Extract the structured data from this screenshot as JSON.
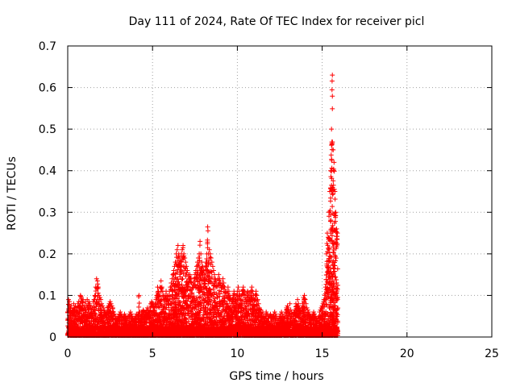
{
  "chart_data": {
    "type": "scatter",
    "title": "Day 111 of 2024, Rate Of TEC Index for receiver picl",
    "xlabel": "GPS time / hours",
    "ylabel": "ROTI / TECUs",
    "xlim": [
      0,
      25
    ],
    "ylim": [
      0,
      0.7
    ],
    "x_ticks": [
      0,
      5,
      10,
      15,
      20,
      25
    ],
    "y_ticks": [
      0,
      0.1,
      0.2,
      0.3,
      0.4,
      0.5,
      0.6,
      0.7
    ],
    "x_tick_labels": [
      "0",
      "5",
      "10",
      "15",
      "20",
      "25"
    ],
    "y_tick_labels": [
      "0",
      "0.1",
      "0.2",
      "0.3",
      "0.4",
      "0.5",
      "0.6",
      "0.7"
    ],
    "grid": true,
    "marker": "+",
    "colors": {
      "series": "#ff0000",
      "grid": "#a0a0a0",
      "axis": "#000000"
    },
    "x_values_start": 0.0,
    "x_values_step": 0.05,
    "series": [
      {
        "y_max": [
          0.06,
          0.09,
          0.085,
          0.07,
          0.075,
          0.06,
          0.065,
          0.08,
          0.07,
          0.075,
          0.06,
          0.07,
          0.08,
          0.085,
          0.075,
          0.1,
          0.095,
          0.085,
          0.09,
          0.07,
          0.075,
          0.085,
          0.075,
          0.09,
          0.08,
          0.085,
          0.08,
          0.07,
          0.065,
          0.07,
          0.085,
          0.09,
          0.1,
          0.12,
          0.14,
          0.135,
          0.12,
          0.1,
          0.095,
          0.09,
          0.08,
          0.075,
          0.07,
          0.065,
          0.06,
          0.055,
          0.06,
          0.07,
          0.075,
          0.08,
          0.085,
          0.08,
          0.075,
          0.07,
          0.06,
          0.055,
          0.05,
          0.045,
          0.04,
          0.045,
          0.05,
          0.055,
          0.06,
          0.055,
          0.05,
          0.045,
          0.05,
          0.055,
          0.05,
          0.045,
          0.04,
          0.045,
          0.05,
          0.055,
          0.06,
          0.055,
          0.05,
          0.045,
          0.04,
          0.045,
          0.05,
          0.055,
          0.05,
          0.055,
          0.1,
          0.06,
          0.05,
          0.055,
          0.06,
          0.065,
          0.06,
          0.055,
          0.06,
          0.065,
          0.07,
          0.065,
          0.06,
          0.07,
          0.08,
          0.085,
          0.08,
          0.075,
          0.07,
          0.08,
          0.09,
          0.1,
          0.12,
          0.11,
          0.1,
          0.12,
          0.135,
          0.12,
          0.11,
          0.1,
          0.09,
          0.1,
          0.11,
          0.1,
          0.09,
          0.1,
          0.11,
          0.12,
          0.13,
          0.14,
          0.15,
          0.16,
          0.17,
          0.18,
          0.2,
          0.21,
          0.22,
          0.2,
          0.19,
          0.18,
          0.2,
          0.21,
          0.22,
          0.2,
          0.19,
          0.18,
          0.17,
          0.16,
          0.15,
          0.14,
          0.15,
          0.14,
          0.13,
          0.12,
          0.13,
          0.14,
          0.15,
          0.16,
          0.17,
          0.18,
          0.19,
          0.2,
          0.23,
          0.2,
          0.18,
          0.17,
          0.16,
          0.15,
          0.14,
          0.18,
          0.2,
          0.265,
          0.2,
          0.21,
          0.2,
          0.19,
          0.18,
          0.17,
          0.16,
          0.15,
          0.14,
          0.13,
          0.12,
          0.14,
          0.15,
          0.14,
          0.13,
          0.12,
          0.13,
          0.14,
          0.13,
          0.12,
          0.11,
          0.1,
          0.11,
          0.12,
          0.11,
          0.1,
          0.09,
          0.08,
          0.09,
          0.1,
          0.11,
          0.1,
          0.09,
          0.1,
          0.11,
          0.12,
          0.11,
          0.1,
          0.09,
          0.1,
          0.11,
          0.12,
          0.11,
          0.1,
          0.09,
          0.1,
          0.11,
          0.1,
          0.09,
          0.1,
          0.11,
          0.12,
          0.11,
          0.1,
          0.09,
          0.1,
          0.11,
          0.1,
          0.09,
          0.08,
          0.07,
          0.065,
          0.06,
          0.055,
          0.06,
          0.05,
          0.045,
          0.05,
          0.06,
          0.055,
          0.05,
          0.045,
          0.05,
          0.055,
          0.05,
          0.045,
          0.05,
          0.055,
          0.06,
          0.055,
          0.05,
          0.045,
          0.04,
          0.045,
          0.05,
          0.055,
          0.06,
          0.055,
          0.05,
          0.045,
          0.05,
          0.06,
          0.07,
          0.075,
          0.07,
          0.06,
          0.08,
          0.065,
          0.06,
          0.055,
          0.05,
          0.06,
          0.065,
          0.08,
          0.075,
          0.09,
          0.08,
          0.07,
          0.065,
          0.06,
          0.07,
          0.08,
          0.095,
          0.1,
          0.09,
          0.08,
          0.07,
          0.065,
          0.06,
          0.055,
          0.05,
          0.045,
          0.05,
          0.055,
          0.06,
          0.055,
          0.05,
          0.045,
          0.04,
          0.045,
          0.05,
          0.06,
          0.065,
          0.07,
          0.075,
          0.08,
          0.09,
          0.1,
          0.12,
          0.2,
          0.25,
          0.24,
          0.3,
          0.35,
          0.4,
          0.5,
          0.63,
          0.45,
          0.42,
          0.35,
          0.3,
          0.26,
          0.25
        ]
      }
    ]
  }
}
